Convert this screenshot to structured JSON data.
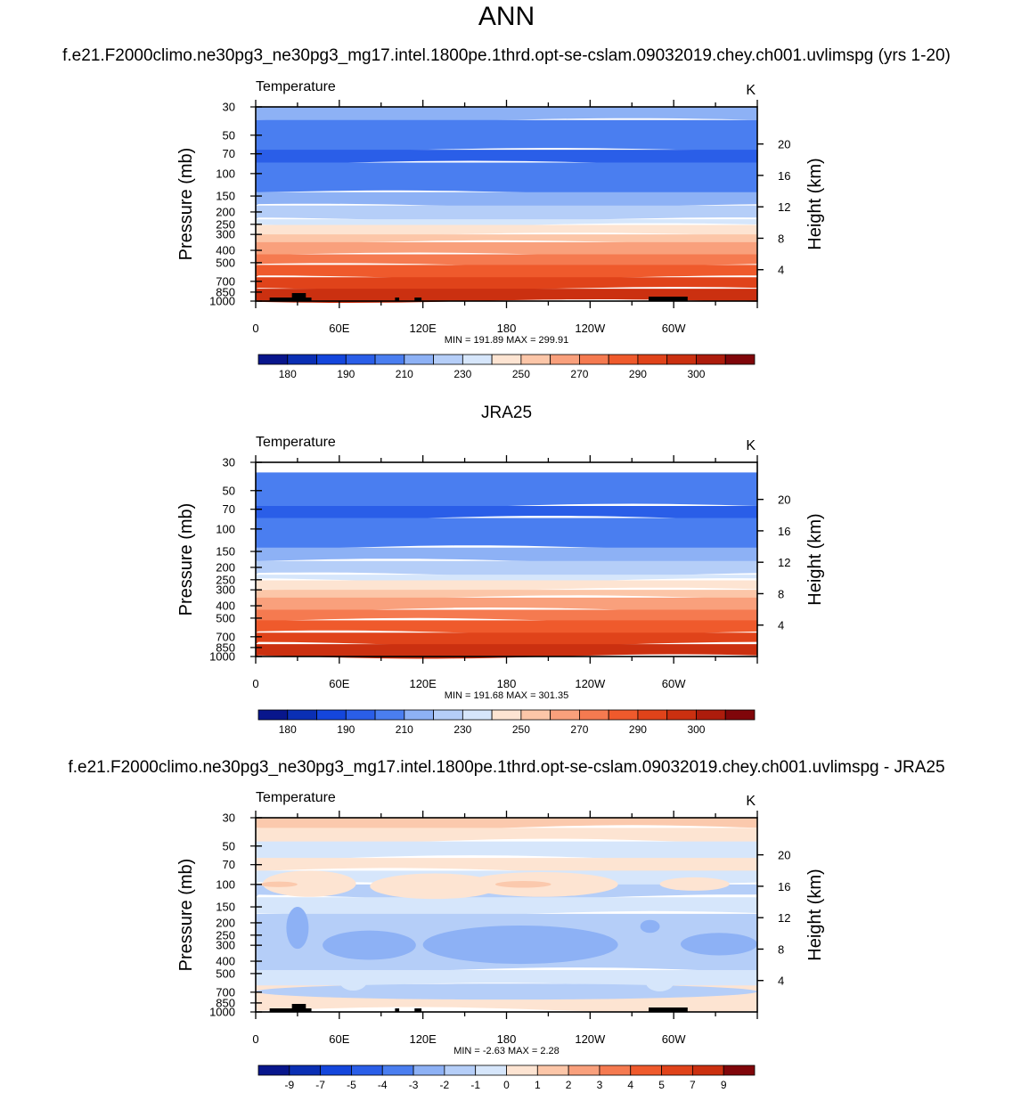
{
  "page": {
    "title": "ANN"
  },
  "chart_data": [
    {
      "type": "contour",
      "header": "f.e21.F2000climo.ne30pg3_ne30pg3_mg17.intel.1800pe.1thrd.opt-se-cslam.09032019.chey.ch001.uvlimspg (yrs 1-20)",
      "title": "Temperature",
      "units": "K",
      "ylabel": "Pressure (mb)",
      "y2label": "Height (km)",
      "pressure_ticks": [
        "30",
        "50",
        "70",
        "100",
        "150",
        "200",
        "250",
        "300",
        "400",
        "500",
        "700",
        "850",
        "1000"
      ],
      "height_ticks": [
        "20",
        "16",
        "12",
        "8",
        "4"
      ],
      "x_ticks": [
        "0",
        "60E",
        "120E",
        "180",
        "120W",
        "60W"
      ],
      "stats": "MIN = 191.89  MAX = 299.91",
      "colorbar_labels": [
        "180",
        "190",
        "210",
        "230",
        "250",
        "270",
        "290",
        "300"
      ],
      "level_colors": [
        "#8db1f5",
        "#4a7ef0",
        "#2a5ee8",
        "#4a7ef0",
        "#8db1f5",
        "#b5cef8",
        "#d6e6fb",
        "#fde4d2",
        "#fcc6a8",
        "#f9a07c",
        "#f57a50",
        "#ef5a2c",
        "#e0431a",
        "#cb3010"
      ]
    },
    {
      "type": "contour",
      "header": "JRA25",
      "title": "Temperature",
      "units": "K",
      "ylabel": "Pressure (mb)",
      "y2label": "Height (km)",
      "pressure_ticks": [
        "30",
        "50",
        "70",
        "100",
        "150",
        "200",
        "250",
        "300",
        "400",
        "500",
        "700",
        "850",
        "1000"
      ],
      "height_ticks": [
        "20",
        "16",
        "12",
        "8",
        "4"
      ],
      "x_ticks": [
        "0",
        "60E",
        "120E",
        "180",
        "120W",
        "60W"
      ],
      "stats": "MIN = 191.68  MAX = 301.35",
      "colorbar_labels": [
        "180",
        "190",
        "210",
        "230",
        "250",
        "270",
        "290",
        "300"
      ],
      "level_colors": [
        "#4a7ef0",
        "#2a5ee8",
        "#4a7ef0",
        "#8db1f5",
        "#b5cef8",
        "#d6e6fb",
        "#fde4d2",
        "#fcc6a8",
        "#f9a07c",
        "#f57a50",
        "#ef5a2c",
        "#e0431a",
        "#cb3010"
      ]
    },
    {
      "type": "contour",
      "header": "f.e21.F2000climo.ne30pg3_ne30pg3_mg17.intel.1800pe.1thrd.opt-se-cslam.09032019.chey.ch001.uvlimspg - JRA25",
      "title": "Temperature",
      "units": "K",
      "ylabel": "Pressure (mb)",
      "y2label": "Height (km)",
      "pressure_ticks": [
        "30",
        "50",
        "70",
        "100",
        "150",
        "200",
        "250",
        "300",
        "400",
        "500",
        "700",
        "850",
        "1000"
      ],
      "height_ticks": [
        "20",
        "16",
        "12",
        "8",
        "4"
      ],
      "x_ticks": [
        "0",
        "60E",
        "120E",
        "180",
        "120W",
        "60W"
      ],
      "stats": "MIN =  -2.63  MAX =   2.28",
      "colorbar_labels": [
        "-9",
        "-7",
        "-5",
        "-4",
        "-3",
        "-2",
        "-1",
        "0",
        "1",
        "2",
        "3",
        "4",
        "5",
        "7",
        "9"
      ],
      "level_colors": [
        "#fbc9ad",
        "#fde4d2",
        "#d6e6fb",
        "#fde4d2",
        "#d6e6fb",
        "#b5cef8",
        "#d6e6fb",
        "#b5cef8",
        "#d6e6fb",
        "#fde4d2"
      ]
    }
  ],
  "colorbars": {
    "abs_colors": [
      "#08168c",
      "#0a2fb4",
      "#1446dc",
      "#2a5ee8",
      "#4a7ef0",
      "#8db1f5",
      "#b5cef8",
      "#d6e6fb",
      "#fde4d2",
      "#fcc6a8",
      "#f9a07c",
      "#f57a50",
      "#ef5a2c",
      "#e0431a",
      "#cb3010",
      "#ad1c0c",
      "#80060a"
    ],
    "diff_colors": [
      "#08168c",
      "#0a2fb4",
      "#1446dc",
      "#2a5ee8",
      "#4a7ef0",
      "#8db1f5",
      "#b5cef8",
      "#d6e6fb",
      "#fde4d2",
      "#fcc6a8",
      "#f9a07c",
      "#f57a50",
      "#ef5a2c",
      "#e0431a",
      "#cb3010",
      "#80060a"
    ]
  }
}
